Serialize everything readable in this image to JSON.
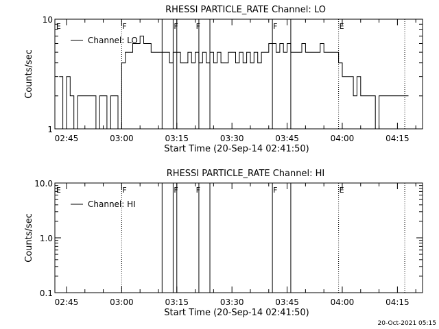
{
  "footer_timestamp": "20-Oct-2021 05:15",
  "chart_data": [
    {
      "type": "line",
      "title": "RHESSI PARTICLE_RATE Channel: LO",
      "xlabel": "Start Time (20-Sep-14 02:41:50)",
      "ylabel": "Counts/sec",
      "yscale": "log",
      "ylim": [
        1,
        10
      ],
      "xlim": [
        "02:41:50",
        "04:21:50"
      ],
      "x_ticks": [
        "02:45",
        "03:00",
        "03:15",
        "03:30",
        "03:45",
        "04:00",
        "04:15"
      ],
      "y_ticks": [
        "1",
        "10"
      ],
      "legend": {
        "entries": [
          "Channel: LO"
        ],
        "position": "top-left"
      },
      "grid": false,
      "flags": [
        {
          "label": "E",
          "time": "02:42"
        },
        {
          "label": "F",
          "time": "03:00"
        },
        {
          "label": "F",
          "time": "03:14"
        },
        {
          "label": "F",
          "time": "03:20"
        },
        {
          "label": "F",
          "time": "03:41"
        },
        {
          "label": "E",
          "time": "03:59"
        }
      ],
      "markers": [
        {
          "time": "03:00",
          "style": "dotted"
        },
        {
          "time": "03:11",
          "style": "solid"
        },
        {
          "time": "03:14",
          "style": "solid"
        },
        {
          "time": "03:15",
          "style": "solid"
        },
        {
          "time": "03:21",
          "style": "solid"
        },
        {
          "time": "03:24",
          "style": "solid"
        },
        {
          "time": "03:41",
          "style": "solid"
        },
        {
          "time": "03:46",
          "style": "solid"
        },
        {
          "time": "03:59",
          "style": "dotted"
        },
        {
          "time": "04:17",
          "style": "dotted"
        }
      ],
      "series": [
        {
          "name": "Channel: LO",
          "x": [
            "02:43",
            "02:44",
            "02:45",
            "02:46",
            "02:47",
            "02:48",
            "02:49",
            "02:50",
            "02:51",
            "02:52",
            "02:53",
            "02:54",
            "02:55",
            "02:56",
            "02:57",
            "02:58",
            "02:59",
            "03:00",
            "03:01",
            "03:02",
            "03:03",
            "03:04",
            "03:05",
            "03:06",
            "03:07",
            "03:08",
            "03:09",
            "03:10",
            "03:11",
            "03:12",
            "03:13",
            "03:14",
            "03:15",
            "03:16",
            "03:17",
            "03:18",
            "03:19",
            "03:20",
            "03:21",
            "03:22",
            "03:23",
            "03:24",
            "03:25",
            "03:26",
            "03:27",
            "03:28",
            "03:29",
            "03:30",
            "03:31",
            "03:32",
            "03:33",
            "03:34",
            "03:35",
            "03:36",
            "03:37",
            "03:38",
            "03:39",
            "03:40",
            "03:41",
            "03:42",
            "03:43",
            "03:44",
            "03:45",
            "03:46",
            "03:47",
            "03:48",
            "03:49",
            "03:50",
            "03:51",
            "03:52",
            "03:53",
            "03:54",
            "03:55",
            "03:56",
            "03:57",
            "03:58",
            "03:59",
            "04:00",
            "04:01",
            "04:02",
            "04:03",
            "04:04",
            "04:05",
            "04:06",
            "04:07",
            "04:08",
            "04:09",
            "04:10",
            "04:11",
            "04:12",
            "04:13",
            "04:14",
            "04:15",
            "04:16",
            "04:17"
          ],
          "values": [
            3,
            1,
            3,
            2,
            1,
            2,
            2,
            2,
            2,
            2,
            1,
            2,
            2,
            1,
            2,
            2,
            1,
            4,
            5,
            5,
            6,
            6,
            7,
            6,
            6,
            5,
            5,
            5,
            5,
            5,
            4,
            5,
            5,
            4,
            4,
            5,
            4,
            5,
            4,
            5,
            4,
            5,
            4,
            5,
            4,
            4,
            5,
            5,
            4,
            5,
            4,
            5,
            4,
            5,
            4,
            5,
            5,
            6,
            6,
            5,
            6,
            5,
            6,
            5,
            5,
            5,
            6,
            5,
            5,
            5,
            5,
            6,
            5,
            5,
            5,
            5,
            4,
            3,
            3,
            3,
            2,
            3,
            2,
            2,
            2,
            2,
            1,
            2,
            2,
            2,
            2,
            2,
            2,
            2,
            2
          ]
        }
      ]
    },
    {
      "type": "line",
      "title": "RHESSI PARTICLE_RATE Channel: HI",
      "xlabel": "Start Time (20-Sep-14 02:41:50)",
      "ylabel": "Counts/sec",
      "yscale": "log",
      "ylim": [
        0.1,
        10.0
      ],
      "xlim": [
        "02:41:50",
        "04:21:50"
      ],
      "x_ticks": [
        "02:45",
        "03:00",
        "03:15",
        "03:30",
        "03:45",
        "04:00",
        "04:15"
      ],
      "y_ticks": [
        "0.1",
        "1.0",
        "10.0"
      ],
      "legend": {
        "entries": [
          "Channel: HI"
        ],
        "position": "top-left"
      },
      "grid": false,
      "flags": [
        {
          "label": "E",
          "time": "02:42"
        },
        {
          "label": "F",
          "time": "03:00"
        },
        {
          "label": "F",
          "time": "03:14"
        },
        {
          "label": "F",
          "time": "03:20"
        },
        {
          "label": "F",
          "time": "03:41"
        },
        {
          "label": "E",
          "time": "03:59"
        }
      ],
      "markers": [
        {
          "time": "03:00",
          "style": "dotted"
        },
        {
          "time": "03:11",
          "style": "solid"
        },
        {
          "time": "03:14",
          "style": "solid"
        },
        {
          "time": "03:15",
          "style": "solid"
        },
        {
          "time": "03:21",
          "style": "solid"
        },
        {
          "time": "03:24",
          "style": "solid"
        },
        {
          "time": "03:41",
          "style": "solid"
        },
        {
          "time": "03:46",
          "style": "solid"
        },
        {
          "time": "03:59",
          "style": "dotted"
        },
        {
          "time": "04:17",
          "style": "dotted"
        }
      ],
      "series": [
        {
          "name": "Channel: HI",
          "x": [],
          "values": []
        }
      ]
    }
  ]
}
